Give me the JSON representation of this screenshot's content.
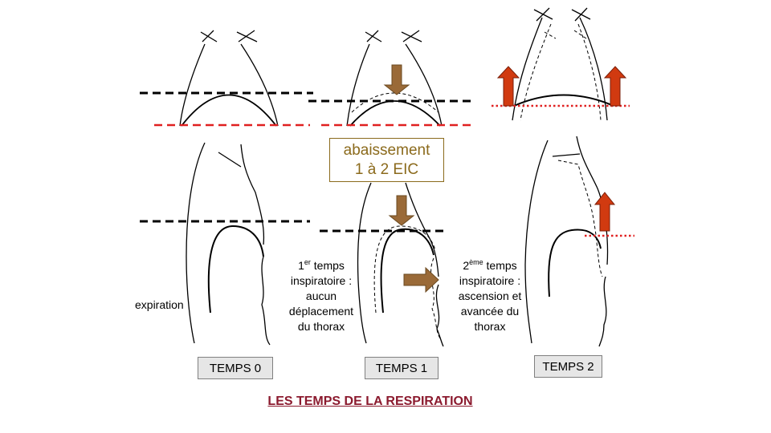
{
  "title": "LES TEMPS DE LA RESPIRATION",
  "colors": {
    "title": "#8b1a2e",
    "brown_arrow": "#9a6a38",
    "red_arrow": "#d13a10",
    "red_line": "#e02020",
    "black_line": "#000000",
    "box_fill": "#e6e6e6",
    "abaissement_text": "#8b6a1c"
  },
  "abaissement": {
    "line1": "abaissement",
    "line2": "1 à 2 EIC"
  },
  "expiration": "expiration",
  "phase1": {
    "sup": "er",
    "line1_rest": " temps",
    "line1_num": "1",
    "lines": [
      "inspiratoire :",
      "aucun",
      "déplacement",
      "du thorax"
    ]
  },
  "phase2": {
    "sup": "ème",
    "line1_rest": " temps",
    "line1_num": "2",
    "lines": [
      "inspiratoire :",
      "ascension et",
      "avancée du",
      "thorax"
    ]
  },
  "labels": {
    "t0": "TEMPS 0",
    "t1": "TEMPS 1",
    "t2": "TEMPS 2"
  },
  "icons": [
    "arrow-down-icon",
    "arrow-right-icon",
    "arrow-up-icon"
  ]
}
